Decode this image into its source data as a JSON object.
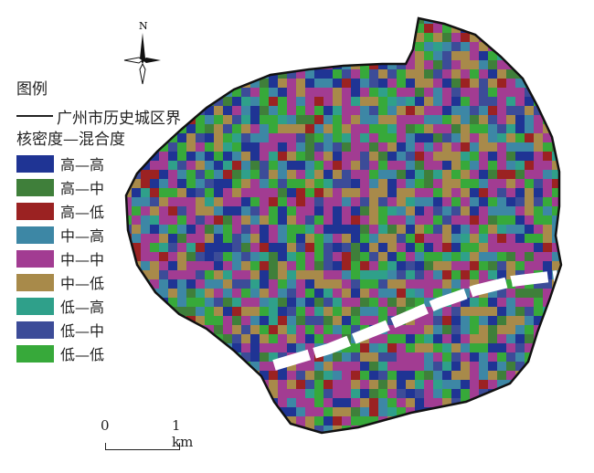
{
  "map": {
    "north_label": "N",
    "legend": {
      "title": "图例",
      "boundary_label": "广州市历史城区界",
      "subtitle": "核密度—混合度",
      "classes": [
        {
          "label": "高—高",
          "color": "#1f3494"
        },
        {
          "label": "高—中",
          "color": "#3f7f3a"
        },
        {
          "label": "高—低",
          "color": "#9b2222"
        },
        {
          "label": "中—高",
          "color": "#3d87a5"
        },
        {
          "label": "中—中",
          "color": "#a23c92"
        },
        {
          "label": "中—低",
          "color": "#a88a4a"
        },
        {
          "label": "低—高",
          "color": "#2fa08a"
        },
        {
          "label": "低—中",
          "color": "#3c4c98"
        },
        {
          "label": "低—低",
          "color": "#37a93a"
        }
      ]
    },
    "scale_bar": {
      "start": "0",
      "end": "1 km"
    }
  }
}
